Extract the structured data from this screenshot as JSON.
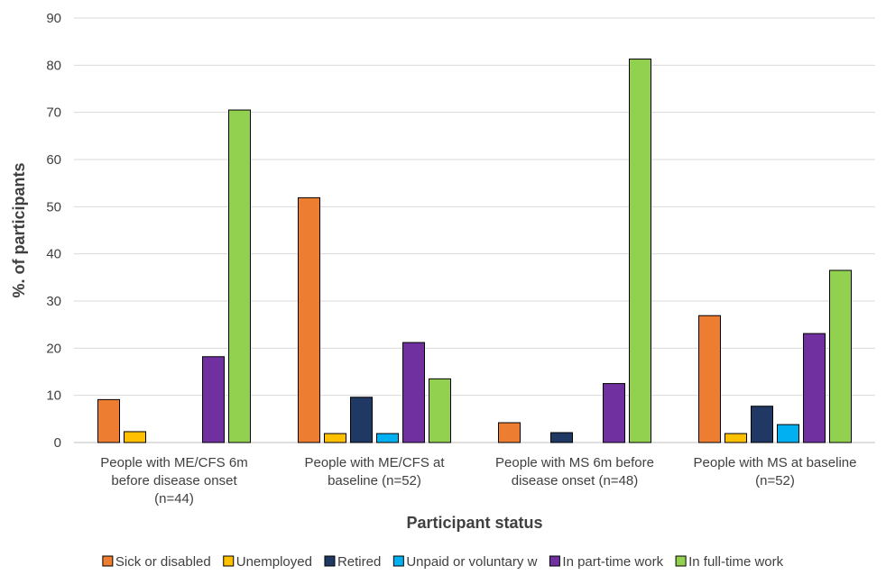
{
  "chart_data": {
    "type": "bar",
    "title": "",
    "xlabel": "Participant status",
    "ylabel": "%. of participants",
    "ylim": [
      0,
      90
    ],
    "yticks": [
      0,
      10,
      20,
      30,
      40,
      50,
      60,
      70,
      80,
      90
    ],
    "grid": true,
    "legend_position": "bottom",
    "categories": [
      [
        "People with ME/CFS 6m",
        "before disease onset",
        "(n=44)"
      ],
      [
        "People with ME/CFS at",
        "baseline (n=52)"
      ],
      [
        "People with MS 6m before",
        "disease onset (n=48)"
      ],
      [
        "People with MS at baseline",
        "(n=52)"
      ]
    ],
    "series": [
      {
        "name": "Sick or disabled",
        "color": "#ED7D31",
        "values": [
          9.1,
          51.9,
          4.2,
          26.9
        ]
      },
      {
        "name": "Unemployed",
        "color": "#FFC000",
        "values": [
          2.3,
          1.9,
          0,
          1.9
        ]
      },
      {
        "name": "Retired",
        "color": "#203864",
        "values": [
          0,
          9.6,
          2.1,
          7.7
        ]
      },
      {
        "name": "Unpaid or voluntary w",
        "color": "#00B0F0",
        "values": [
          0,
          1.9,
          0,
          3.8
        ]
      },
      {
        "name": "In part-time work",
        "color": "#7030A0",
        "values": [
          18.2,
          21.2,
          12.5,
          23.1
        ]
      },
      {
        "name": "In full-time work",
        "color": "#92D050",
        "values": [
          70.5,
          13.5,
          81.3,
          36.5
        ]
      }
    ]
  }
}
